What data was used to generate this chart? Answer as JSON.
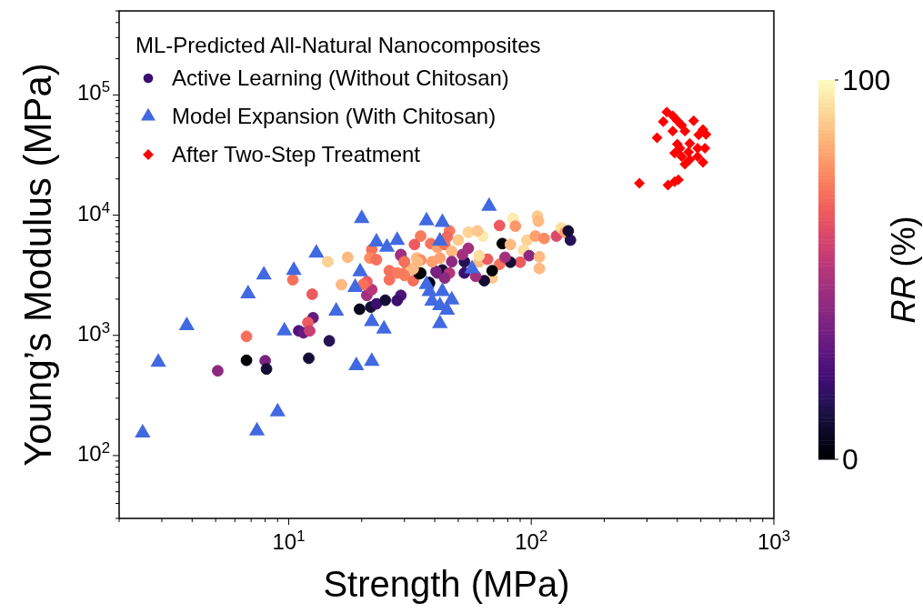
{
  "chart_data": {
    "type": "scatter",
    "xlabel": "Strength (MPa)",
    "ylabel": "Young’s Modulus (MPa)",
    "clabel": "RR (%)",
    "legend_title": "ML-Predicted All-Natural Nanocomposites",
    "legend": "top left",
    "log": "xy",
    "grid": false,
    "xlim": [
      2,
      1000
    ],
    "ylim": [
      30,
      500000
    ],
    "xticks": [
      {
        "value": 2,
        "label": null
      },
      {
        "value": 3,
        "label": null
      },
      {
        "value": 4,
        "label": null
      },
      {
        "value": 5,
        "label": null
      },
      {
        "value": 6,
        "label": null
      },
      {
        "value": 7,
        "label": null
      },
      {
        "value": 8,
        "label": null
      },
      {
        "value": 9,
        "label": null
      },
      {
        "value": 10,
        "label": "10$^{1}$"
      },
      {
        "value": 20,
        "label": null
      },
      {
        "value": 30,
        "label": null
      },
      {
        "value": 40,
        "label": null
      },
      {
        "value": 50,
        "label": null
      },
      {
        "value": 60,
        "label": null
      },
      {
        "value": 70,
        "label": null
      },
      {
        "value": 80,
        "label": null
      },
      {
        "value": 90,
        "label": null
      },
      {
        "value": 100,
        "label": "10$^{2}$"
      },
      {
        "value": 200,
        "label": null
      },
      {
        "value": 300,
        "label": null
      },
      {
        "value": 400,
        "label": null
      },
      {
        "value": 500,
        "label": null
      },
      {
        "value": 600,
        "label": null
      },
      {
        "value": 700,
        "label": null
      },
      {
        "value": 800,
        "label": null
      },
      {
        "value": 900,
        "label": null
      },
      {
        "value": 1000,
        "label": "10$^{3}$"
      }
    ],
    "yticks": [
      {
        "value": 30,
        "label": null
      },
      {
        "value": 40,
        "label": null
      },
      {
        "value": 50,
        "label": null
      },
      {
        "value": 60,
        "label": null
      },
      {
        "value": 70,
        "label": null
      },
      {
        "value": 80,
        "label": null
      },
      {
        "value": 90,
        "label": null
      },
      {
        "value": 100,
        "label": "10$^{2}$"
      },
      {
        "value": 200,
        "label": null
      },
      {
        "value": 300,
        "label": null
      },
      {
        "value": 400,
        "label": null
      },
      {
        "value": 500,
        "label": null
      },
      {
        "value": 600,
        "label": null
      },
      {
        "value": 700,
        "label": null
      },
      {
        "value": 800,
        "label": null
      },
      {
        "value": 900,
        "label": null
      },
      {
        "value": 1000,
        "label": "10$^{3}$"
      },
      {
        "value": 2000,
        "label": null
      },
      {
        "value": 3000,
        "label": null
      },
      {
        "value": 4000,
        "label": null
      },
      {
        "value": 5000,
        "label": null
      },
      {
        "value": 6000,
        "label": null
      },
      {
        "value": 7000,
        "label": null
      },
      {
        "value": 8000,
        "label": null
      },
      {
        "value": 9000,
        "label": null
      },
      {
        "value": 10000,
        "label": "10$^{4}$"
      },
      {
        "value": 20000,
        "label": null
      },
      {
        "value": 30000,
        "label": null
      },
      {
        "value": 40000,
        "label": null
      },
      {
        "value": 50000,
        "label": null
      },
      {
        "value": 60000,
        "label": null
      },
      {
        "value": 70000,
        "label": null
      },
      {
        "value": 80000,
        "label": null
      },
      {
        "value": 90000,
        "label": null
      },
      {
        "value": 100000,
        "label": "10$^{5}$"
      },
      {
        "value": 200000,
        "label": null
      },
      {
        "value": 300000,
        "label": null
      },
      {
        "value": 400000,
        "label": null
      },
      {
        "value": 500000,
        "label": null
      }
    ],
    "clim": [
      0,
      100
    ],
    "cticks": [
      0,
      100
    ],
    "series": [
      {
        "name": "Active Learning (Without Chitosan)",
        "marker": "circle",
        "colors": [
          "#8c2981",
          "#000004",
          "#782281",
          "#140e36",
          "#f7705c",
          "#140e36",
          "#251255",
          "#f7705c",
          "#ed5a5f",
          "#51127c",
          "#641a80",
          "#641a80",
          "#ed5a5f",
          "#cb3e72",
          "#fed395",
          "#feba80",
          "#feba80",
          "#07061c",
          "#140e36",
          "#3b0f70",
          "#140e36",
          "#51127c",
          "#3b0f70",
          "#a1307e",
          "#b73779",
          "#ed5a5f",
          "#f7705c",
          "#f7705c",
          "#fc8961",
          "#f7705c",
          "#f7705c",
          "#f7705c",
          "#8c2981",
          "#feba80",
          "#f97b5d",
          "#ed5a5f",
          "#fc8961",
          "#f97b5d",
          "#f7705c",
          "#000004",
          "#140e36",
          "#641a80",
          "#feba80",
          "#f7705c",
          "#fea16e",
          "#f7705c",
          "#f97b5d",
          "#fec98d",
          "#fed395",
          "#fcecae",
          "#fec98d",
          "#ed5a5f",
          "#fcecae",
          "#fec98d",
          "#feba80",
          "#fd9668",
          "#fed395",
          "#fea16e",
          "#fc8961",
          "#de4968",
          "#fddea0",
          "#fea16e",
          "#251255",
          "#140e36",
          "#000004",
          "#feba80",
          "#fddea0",
          "#8c2981",
          "#ed5a5f",
          "#140e36",
          "#f7705c",
          "#a1307e",
          "#feba80",
          "#feba80",
          "#fec98d",
          "#140e36",
          "#000004",
          "#a1307e",
          "#feba80",
          "#ed5a5f",
          "#3b0f70",
          "#251255",
          "#a1307e",
          "#a1307e",
          "#fddea0",
          "#feba80",
          "#8c2981",
          "#140e36",
          "#782281",
          "#b73779",
          "#8c2981",
          "#07061c",
          "#000004",
          "#fea16e",
          "#fea16e",
          "#fc8961",
          "#feba80",
          "#f97b5d",
          "#f97b5d",
          "#a1307e",
          "#f7705c",
          "#feba80",
          "#f3695c"
        ],
        "x": [
          5.1,
          6.7,
          8.0,
          8.1,
          6.7,
          12.1,
          14.7,
          10.4,
          12.5,
          11,
          11.5,
          12.6,
          12,
          12.2,
          14.5,
          17.5,
          16.5,
          19.6,
          21.8,
          23,
          25,
          29,
          28,
          21,
          22,
          21,
          20.3,
          22,
          21.6,
          23,
          26,
          26,
          29,
          33.7,
          35,
          33,
          30,
          30,
          32.6,
          35,
          38,
          41,
          32,
          38.5,
          41,
          44,
          46,
          50,
          55,
          63,
          60,
          74,
          84,
          106,
          107,
          86,
          96,
          104,
          113,
          127,
          133,
          138,
          145,
          142,
          76,
          82,
          93,
          98,
          90,
          82,
          74,
          78,
          108,
          108,
          69,
          64,
          69,
          59,
          61,
          66,
          53,
          53,
          52,
          55,
          61,
          47,
          47,
          43,
          40.5,
          46,
          44,
          38,
          34.5,
          42,
          39,
          35,
          34,
          30,
          28,
          29,
          30,
          32.6,
          45
        ],
        "values": [
          507,
          620,
          615,
          525,
          980,
          645,
          900,
          2900,
          2200,
          1090,
          1050,
          1400,
          1280,
          1090,
          4100,
          4460,
          2640,
          1650,
          1720,
          1830,
          1960,
          2150,
          1950,
          2150,
          2400,
          2800,
          2650,
          5170,
          4400,
          4260,
          3450,
          2900,
          4700,
          4400,
          6700,
          5700,
          4100,
          3300,
          2850,
          3300,
          2700,
          3300,
          3560,
          5800,
          5400,
          5700,
          7400,
          6200,
          7200,
          6700,
          7400,
          8200,
          9400,
          9800,
          8900,
          8100,
          6200,
          6700,
          6400,
          6700,
          7800,
          7200,
          6200,
          7400,
          5800,
          5700,
          5100,
          4600,
          4060,
          4060,
          3900,
          4460,
          4500,
          3600,
          3000,
          2850,
          3450,
          3100,
          4100,
          4300,
          3300,
          4100,
          4700,
          5300,
          4600,
          5000,
          4100,
          3500,
          3400,
          3300,
          3000,
          2750,
          3250,
          4400,
          4100,
          4230,
          4100,
          3150,
          3300,
          4600,
          4100,
          3560,
          6600
        ],
        "cvalues": [
          40,
          0,
          35,
          10,
          70,
          10,
          15,
          70,
          65,
          25,
          30,
          30,
          65,
          55,
          90,
          85,
          85,
          5,
          10,
          20,
          10,
          25,
          20,
          45,
          50,
          65,
          70,
          70,
          75,
          70,
          70,
          70,
          40,
          85,
          72,
          65,
          75,
          72,
          70,
          0,
          10,
          30,
          85,
          70,
          80,
          70,
          72,
          88,
          90,
          95,
          88,
          65,
          95,
          88,
          85,
          78,
          90,
          80,
          75,
          60,
          92,
          80,
          15,
          10,
          0,
          85,
          92,
          40,
          65,
          10,
          70,
          45,
          85,
          85,
          88,
          10,
          0,
          45,
          85,
          65,
          20,
          15,
          45,
          45,
          92,
          85,
          40,
          10,
          35,
          50,
          40,
          5,
          0,
          80,
          80,
          75,
          85,
          72,
          72,
          45,
          70,
          85,
          68
        ]
      },
      {
        "name": "Model Expansion (With Chitosan)",
        "marker": "triangle",
        "color": "#4169e1",
        "x": [
          2.5,
          2.9,
          3.8,
          6.8,
          7.9,
          10.5,
          13,
          20,
          9.0,
          7.4,
          9.6,
          15.7,
          19,
          22,
          19.7,
          18.8,
          23,
          25.4,
          28,
          37,
          43,
          42,
          67,
          38,
          43,
          47,
          39,
          42,
          45,
          22,
          24.7,
          42,
          57,
          37
        ],
        "values": [
          160,
          620,
          1250,
          2300,
          3300,
          3600,
          5000,
          9700,
          240,
          166,
          1130,
          1650,
          580,
          630,
          3500,
          2600,
          6200,
          5600,
          6400,
          9300,
          9000,
          6300,
          12300,
          2400,
          2400,
          2040,
          2000,
          1830,
          1680,
          1350,
          1170,
          1300,
          3700,
          2750
        ]
      },
      {
        "name": "After Two-Step Treatment",
        "marker": "diamond",
        "color": "#ff0000",
        "x": [
          279,
          366,
          390,
          404,
          330,
          362,
          383,
          400,
          350,
          417,
          383,
          430,
          467,
          510,
          525,
          490,
          400,
          450,
          485,
          445,
          390,
          417,
          450,
          520,
          510,
          430,
          485,
          410
        ],
        "values": [
          18400,
          17800,
          19000,
          19700,
          44000,
          72000,
          67000,
          61000,
          60000,
          56000,
          50000,
          50000,
          61000,
          51500,
          47000,
          46500,
          39000,
          39500,
          36000,
          33500,
          32800,
          30700,
          29000,
          36000,
          27500,
          26500,
          30700,
          36000
        ]
      }
    ]
  }
}
